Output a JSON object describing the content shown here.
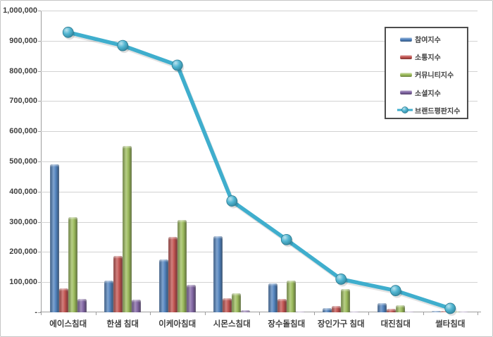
{
  "chart_data": {
    "type": "bar",
    "subtype": "grouped-bars-with-line-overlay",
    "title": "",
    "xlabel": "",
    "ylabel": "",
    "categories": [
      "에이스침대",
      "한샘 침대",
      "이케아침대",
      "시몬스침대",
      "장수돌침대",
      "장인가구 침대",
      "대진침대",
      "썰타침대"
    ],
    "series": [
      {
        "name": "참여지수",
        "type": "bar",
        "color": "#4F81BD",
        "values": [
          490000,
          105000,
          175000,
          253000,
          95000,
          15000,
          30000,
          5000
        ]
      },
      {
        "name": "소통지수",
        "type": "bar",
        "color": "#C0504D",
        "values": [
          80000,
          187000,
          250000,
          46000,
          44000,
          20000,
          12000,
          5000
        ]
      },
      {
        "name": "커뮤니티지수",
        "type": "bar",
        "color": "#9BBB59",
        "values": [
          316000,
          551000,
          306000,
          63000,
          104000,
          77000,
          24000,
          3000
        ]
      },
      {
        "name": "소셜지수",
        "type": "bar",
        "color": "#8064A2",
        "values": [
          45000,
          41000,
          91000,
          6000,
          3000,
          2000,
          2000,
          1000
        ]
      },
      {
        "name": "브랜드평판지수",
        "type": "line",
        "color": "#3FAECD",
        "values": [
          928000,
          884000,
          819000,
          369000,
          241000,
          110000,
          72000,
          13000
        ]
      }
    ],
    "ylim": [
      0,
      1000000
    ],
    "y_tick_labels": [
      "1,000,000",
      "900,000",
      "800,000",
      "700,000",
      "600,000",
      "500,000",
      "400,000",
      "300,000",
      "200,000",
      "100,000",
      "-"
    ],
    "grid": true,
    "legend_position": "top-right",
    "colors": {
      "gridline": "#d2d2d2",
      "axis": "#9e9e9e",
      "text": "#3f3f3f",
      "background": "#ffffff",
      "frame_border": "#c5c5c5",
      "legend_border": "#4d4d4d"
    }
  }
}
